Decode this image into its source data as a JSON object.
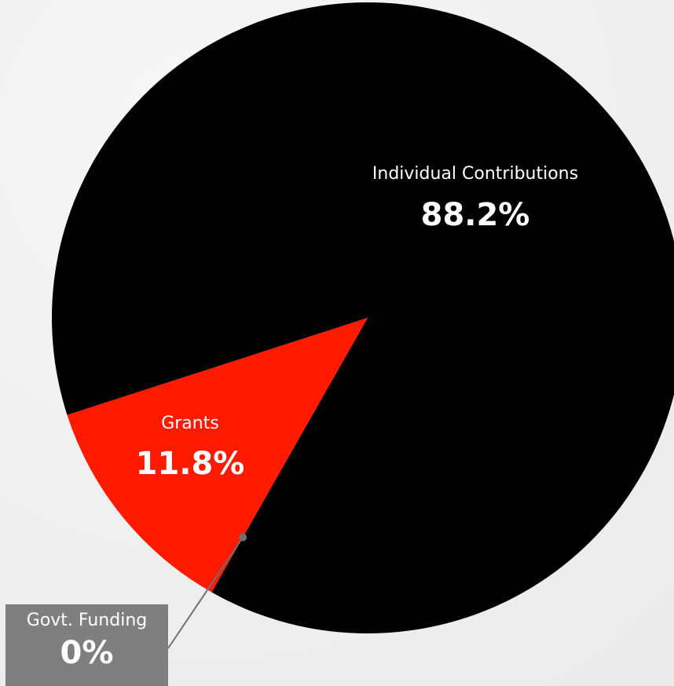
{
  "chart_data": {
    "type": "pie",
    "title": "",
    "slices": [
      {
        "name": "Individual Contributions",
        "value": 88.2,
        "value_label": "88.2%",
        "color": "#000000"
      },
      {
        "name": "Grants",
        "value": 11.8,
        "value_label": "11.8%",
        "color": "#ff1a00"
      },
      {
        "name": "Govt. Funding",
        "value": 0,
        "value_label": "0%",
        "color": "#7f7f7f"
      }
    ],
    "legend": "none"
  }
}
